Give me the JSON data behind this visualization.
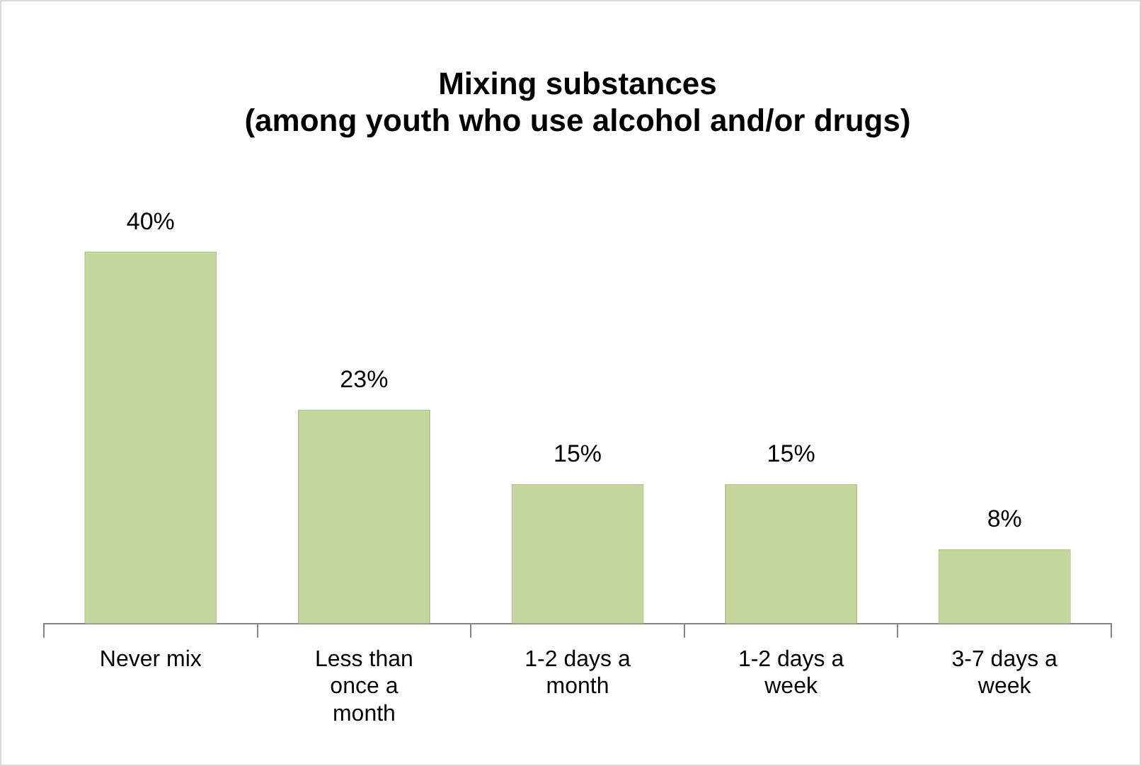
{
  "chart_data": {
    "type": "bar",
    "title": "Mixing substances\n(among youth who use alcohol and/or drugs)",
    "categories": [
      "Never mix",
      "Less than once a month",
      "1-2 days a month",
      "1-2 days a week",
      "3-7 days a week"
    ],
    "values": [
      40,
      23,
      15,
      15,
      8
    ],
    "value_labels": [
      "40%",
      "23%",
      "15%",
      "15%",
      "8%"
    ],
    "color": "#c3d69b"
  }
}
